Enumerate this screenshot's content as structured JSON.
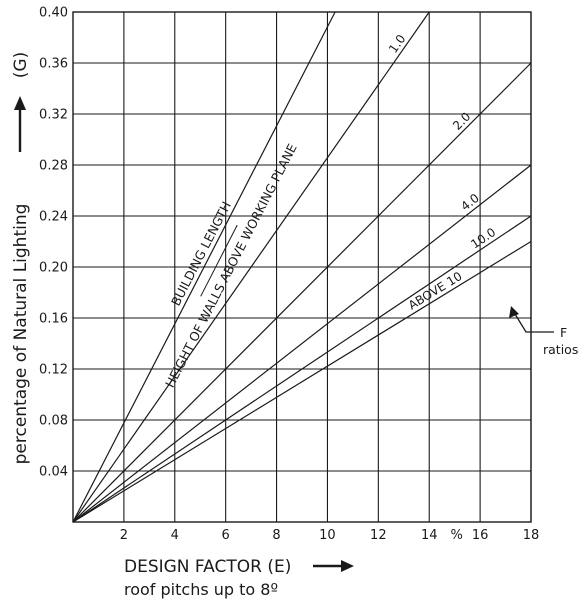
{
  "chart_data": {
    "type": "line",
    "xlim": [
      0,
      18
    ],
    "ylim": [
      0,
      0.4
    ],
    "x_ticks": [
      {
        "value": 2,
        "label": "2"
      },
      {
        "value": 4,
        "label": "4"
      },
      {
        "value": 6,
        "label": "6"
      },
      {
        "value": 8,
        "label": "8"
      },
      {
        "value": 10,
        "label": "10"
      },
      {
        "value": 12,
        "label": "12"
      },
      {
        "value": 14,
        "label": "14"
      },
      {
        "value": 16,
        "label": "16"
      },
      {
        "value": 18,
        "label": "18"
      }
    ],
    "x_unit": "%",
    "y_ticks": [
      {
        "value": 0.04,
        "label": "0.04"
      },
      {
        "value": 0.08,
        "label": "0.08"
      },
      {
        "value": 0.12,
        "label": "0.12"
      },
      {
        "value": 0.16,
        "label": "0.16"
      },
      {
        "value": 0.2,
        "label": "0.20"
      },
      {
        "value": 0.24,
        "label": "0.24"
      },
      {
        "value": 0.28,
        "label": "0.28"
      },
      {
        "value": 0.32,
        "label": "0.32"
      },
      {
        "value": 0.36,
        "label": "0.36"
      },
      {
        "value": 0.4,
        "label": "0.40"
      }
    ],
    "grid": true,
    "xlabel": "DESIGN FACTOR (E)",
    "xlabel_sub": "roof pitchs up to 8º",
    "ylabel": "percentage of Natural Lighting",
    "ylabel_symbol": "(G)",
    "series": [
      {
        "label": "",
        "points": [
          [
            0,
            0
          ],
          [
            10.3,
            0.4
          ]
        ]
      },
      {
        "label": "1.0",
        "points": [
          [
            0,
            0
          ],
          [
            14,
            0.4
          ]
        ]
      },
      {
        "label": "2.0",
        "points": [
          [
            0,
            0
          ],
          [
            18,
            0.36
          ]
        ]
      },
      {
        "label": "4.0",
        "points": [
          [
            0,
            0
          ],
          [
            18,
            0.28
          ]
        ]
      },
      {
        "label": "10.0",
        "points": [
          [
            0,
            0
          ],
          [
            18,
            0.24
          ]
        ]
      },
      {
        "label": "ABOVE 10",
        "points": [
          [
            0,
            0
          ],
          [
            18,
            0.22
          ]
        ]
      }
    ],
    "diagonal_label_top": "BUILDING LENGTH",
    "diagonal_label_bottom": "HEIGHT OF WALLS ABOVE WORKING PLANE",
    "annotation": {
      "line1": "F",
      "line2": "ratios"
    }
  }
}
